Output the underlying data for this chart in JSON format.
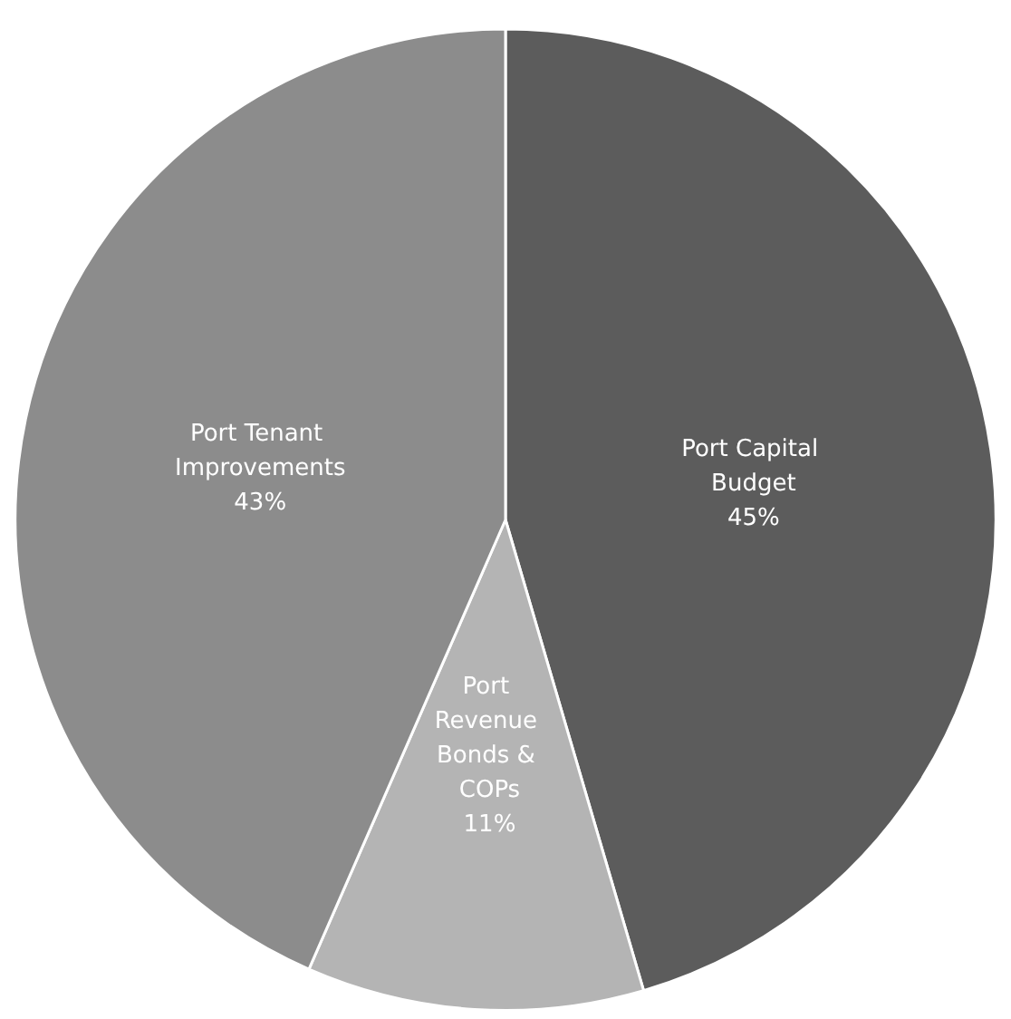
{
  "chart_data": {
    "type": "pie",
    "categories": [
      "Port Capital Budget",
      "Port Revenue Bonds & COPs",
      "Port Tenant Improvements"
    ],
    "values": [
      45,
      11,
      43
    ],
    "colors": [
      "#5c5c5c",
      "#b4b4b4",
      "#8c8c8c"
    ],
    "value_labels": [
      "45%",
      "11%",
      "43%"
    ],
    "legend": false
  }
}
